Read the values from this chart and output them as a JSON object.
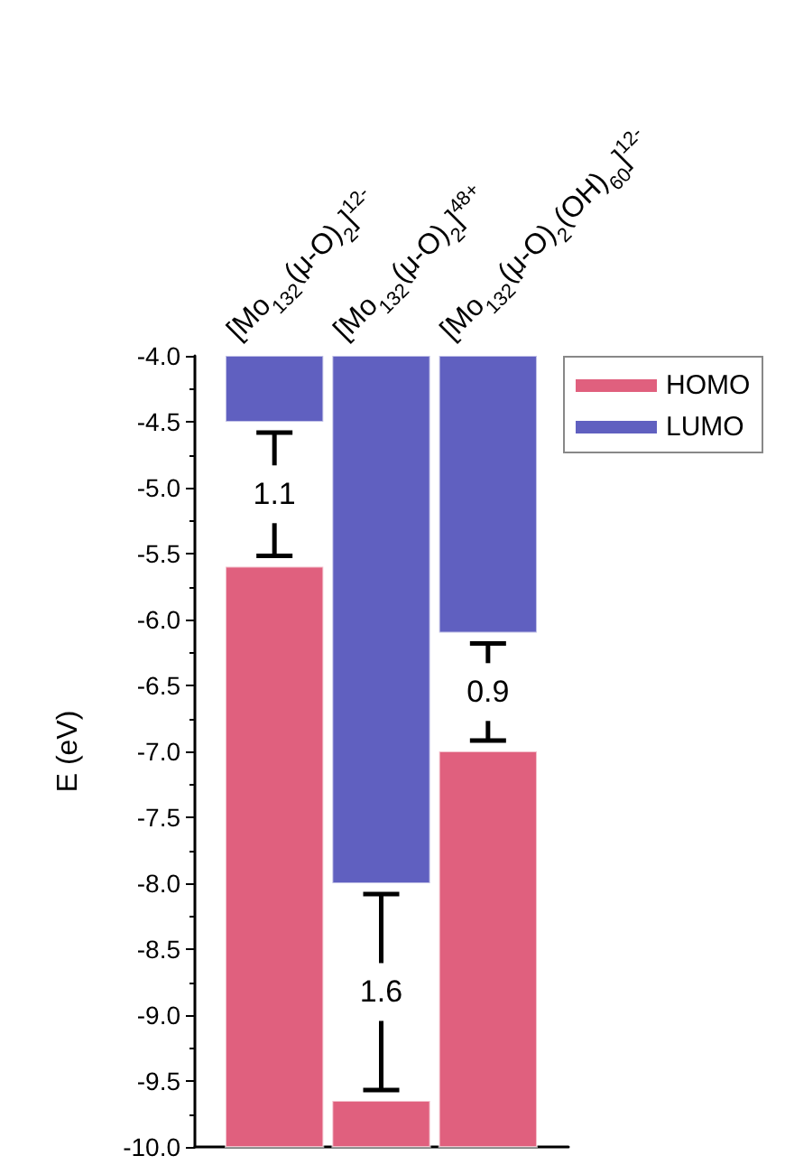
{
  "chart_data": {
    "type": "bar",
    "ylabel": "E (eV)",
    "categories": [
      "[Mo$_{132}$(μ-O)$_{2}$]$^{12-}$",
      "[Mo$_{132}$(μ-O)$_{2}$]$^{48+}$",
      "[Mo$_{132}$(μ-O)$_{2}$(OH)$_{60}$]$^{12-}$"
    ],
    "series": [
      {
        "name": "HOMO",
        "color": "#e0607e",
        "base": [
          -10,
          -10,
          -10
        ],
        "values": [
          4.4,
          0.35,
          3.0
        ]
      },
      {
        "name": "LUMO",
        "color": "#6060c0",
        "base": [
          -4,
          -4,
          -4
        ],
        "values": [
          -0.5,
          -4.0,
          -2.1
        ]
      }
    ],
    "ylim": [
      -10,
      -4
    ],
    "yticks": [
      {
        "value": -10,
        "label": "-10.0"
      },
      {
        "value": -9.5,
        "label": "-9.5"
      },
      {
        "value": -9,
        "label": "-9.0"
      },
      {
        "value": -8.5,
        "label": "-8.5"
      },
      {
        "value": -8,
        "label": "-8.0"
      },
      {
        "value": -7.5,
        "label": "-7.5"
      },
      {
        "value": -7,
        "label": "-7.0"
      },
      {
        "value": -6.5,
        "label": "-6.5"
      },
      {
        "value": -6,
        "label": "-6.0"
      },
      {
        "value": -5.5,
        "label": "-5.5"
      },
      {
        "value": -5,
        "label": "-5.0"
      },
      {
        "value": -4.5,
        "label": "-4.5"
      },
      {
        "value": -4,
        "label": "-4.0"
      }
    ],
    "annotations": [
      "1.1",
      "1.6",
      "0.9"
    ],
    "grid": false,
    "legend": "top right"
  }
}
